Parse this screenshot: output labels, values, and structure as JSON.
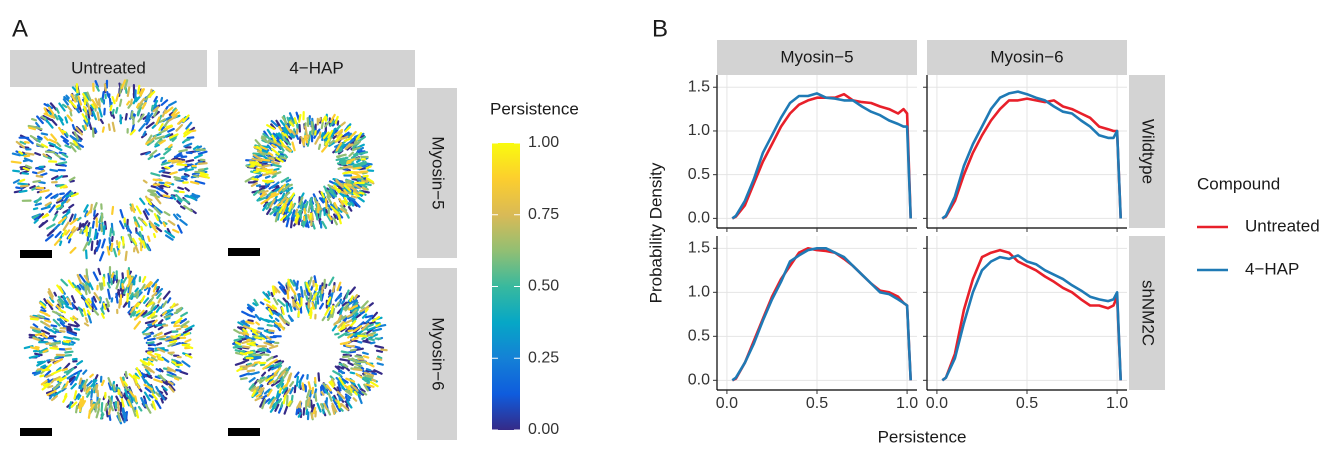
{
  "chart_data": [
    {
      "type": "image-grid",
      "panel_label": "A",
      "columns": [
        "Untreated",
        "4−HAP"
      ],
      "rows": [
        "Myosin−5",
        "Myosin−6"
      ],
      "colorbar": {
        "title": "Persistence",
        "lim": [
          0,
          1
        ],
        "ticks": [
          {
            "value": 0,
            "label": "0.00"
          },
          {
            "value": 0.25,
            "label": "0.25"
          },
          {
            "value": 0.5,
            "label": "0.50"
          },
          {
            "value": 0.75,
            "label": "0.75"
          },
          {
            "value": 1,
            "label": "1.00"
          }
        ],
        "colors": [
          "#352a87",
          "#0f5cdd",
          "#1481d6",
          "#06a7c6",
          "#38b99e",
          "#92bf73",
          "#d9ba56",
          "#fcce2e",
          "#f9fb0e"
        ]
      }
    },
    {
      "type": "line",
      "panel_label": "B",
      "columns": [
        "Myosin−5",
        "Myosin−6"
      ],
      "rows": [
        "Wildtype",
        "shNM2C"
      ],
      "xlabel": "Persistence",
      "ylabel": "Probability Density",
      "legend_title": "Compound",
      "series": [
        {
          "name": "Untreated",
          "color": "#e8202a"
        },
        {
          "name": "4−HAP",
          "color": "#1f7ab5"
        }
      ],
      "x": [
        0.03,
        0.05,
        0.1,
        0.15,
        0.2,
        0.25,
        0.3,
        0.35,
        0.4,
        0.45,
        0.5,
        0.55,
        0.6,
        0.65,
        0.7,
        0.75,
        0.8,
        0.85,
        0.9,
        0.95,
        0.98,
        1.0,
        1.02
      ],
      "xlim": [
        -0.055,
        1.055
      ],
      "xticks": [
        {
          "value": 0,
          "label": "0.0"
        },
        {
          "value": 0.5,
          "label": "0.5"
        },
        {
          "value": 1,
          "label": "1.0"
        }
      ],
      "ylim": [
        -0.11,
        1.64
      ],
      "yticks": [
        {
          "value": 0,
          "label": "0.0"
        },
        {
          "value": 0.5,
          "label": "0.5"
        },
        {
          "value": 1,
          "label": "1.0"
        },
        {
          "value": 1.5,
          "label": "1.5"
        }
      ],
      "grid": true,
      "facet_values": [
        [
          [
            0,
            0.02,
            0.15,
            0.4,
            0.65,
            0.85,
            1.05,
            1.2,
            1.3,
            1.35,
            1.38,
            1.38,
            1.38,
            1.42,
            1.35,
            1.33,
            1.32,
            1.28,
            1.25,
            1.2,
            1.25,
            1.2,
            0
          ],
          [
            0,
            0.03,
            0.2,
            0.45,
            0.75,
            0.95,
            1.15,
            1.32,
            1.4,
            1.4,
            1.43,
            1.38,
            1.37,
            1.35,
            1.35,
            1.28,
            1.22,
            1.18,
            1.12,
            1.08,
            1.05,
            1.05,
            0
          ]
        ],
        [
          [
            0,
            0.02,
            0.2,
            0.5,
            0.75,
            0.95,
            1.12,
            1.25,
            1.35,
            1.35,
            1.37,
            1.35,
            1.33,
            1.35,
            1.28,
            1.25,
            1.2,
            1.15,
            1.05,
            1.02,
            1.0,
            1.0,
            0
          ],
          [
            0,
            0.03,
            0.25,
            0.6,
            0.85,
            1.05,
            1.25,
            1.38,
            1.43,
            1.45,
            1.42,
            1.38,
            1.35,
            1.28,
            1.22,
            1.2,
            1.12,
            1.05,
            0.95,
            0.92,
            0.92,
            1.0,
            0
          ]
        ],
        [
          [
            0,
            0.02,
            0.2,
            0.45,
            0.7,
            0.95,
            1.15,
            1.3,
            1.45,
            1.5,
            1.48,
            1.47,
            1.45,
            1.38,
            1.3,
            1.2,
            1.1,
            1.02,
            1.0,
            0.95,
            0.88,
            0.85,
            0
          ],
          [
            0,
            0.03,
            0.2,
            0.42,
            0.68,
            0.92,
            1.12,
            1.35,
            1.42,
            1.48,
            1.5,
            1.5,
            1.45,
            1.4,
            1.3,
            1.2,
            1.1,
            1.0,
            0.98,
            0.92,
            0.88,
            0.85,
            0
          ]
        ],
        [
          [
            0,
            0.03,
            0.3,
            0.8,
            1.15,
            1.4,
            1.45,
            1.48,
            1.45,
            1.35,
            1.3,
            1.25,
            1.18,
            1.12,
            1.05,
            1.0,
            0.92,
            0.85,
            0.85,
            0.82,
            0.85,
            0.95,
            0
          ],
          [
            0,
            0.03,
            0.25,
            0.65,
            1.0,
            1.25,
            1.35,
            1.4,
            1.38,
            1.42,
            1.35,
            1.32,
            1.25,
            1.2,
            1.15,
            1.08,
            1.02,
            0.95,
            0.92,
            0.9,
            0.92,
            1.0,
            0
          ]
        ]
      ]
    }
  ]
}
